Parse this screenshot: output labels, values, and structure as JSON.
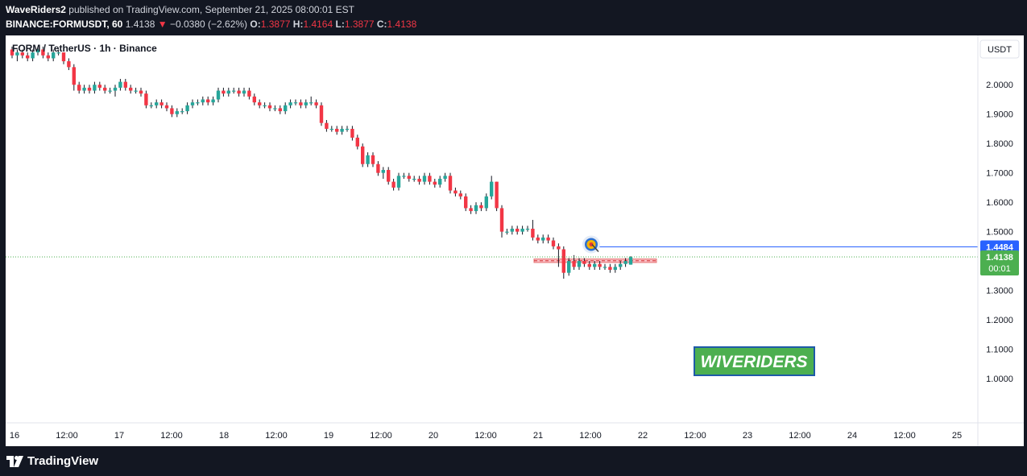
{
  "header": {
    "author": "WaveRiders2",
    "published": "published on TradingView.com, September 21, 2025 08:00:01 EST",
    "symbol": "BINANCE:FORMUSDT, 60",
    "last": "1.4138",
    "arrow": "▼",
    "change": "−0.0380 (−2.62%)",
    "o_label": "O:",
    "o": "1.3877",
    "h_label": "H:",
    "h": "1.4164",
    "l_label": "L:",
    "l": "1.3877",
    "c_label": "C:",
    "c": "1.4138"
  },
  "chart": {
    "legend": "FORM / TetherUS · 1h · Binance",
    "currency": "USDT",
    "watermark": "WIVERIDERS",
    "level_label": "1.4484",
    "price_label": "1.4138",
    "countdown": "00:01",
    "target_icon": "target-icon"
  },
  "footer": {
    "brand": "TradingView",
    "logo_icon": "tradingview-logo-icon"
  },
  "colors": {
    "up": "#26a69a",
    "down": "#f23645",
    "level": "#2962ff",
    "price": "#4caf50",
    "zone": "#f7a4ad",
    "watermark_bg": "#4caf50"
  },
  "chart_data": {
    "type": "candlestick",
    "title": "FORM / TetherUS · 1h · Binance",
    "ylim": [
      0.915,
      2.135
    ],
    "y_ticks": [
      "2.0000",
      "1.9000",
      "1.8000",
      "1.7000",
      "1.6000",
      "1.5000",
      "1.3000",
      "1.2000",
      "1.1000",
      "1.0000"
    ],
    "x_ticks": [
      "16",
      "12:00",
      "17",
      "12:00",
      "18",
      "12:00",
      "19",
      "12:00",
      "20",
      "12:00",
      "21",
      "12:00",
      "22",
      "12:00",
      "23",
      "12:00",
      "24",
      "12:00",
      "25"
    ],
    "x_tick_days": [
      16,
      16.5,
      17,
      17.5,
      18,
      18.5,
      19,
      19.5,
      20,
      20.5,
      21,
      21.5,
      22,
      22.5,
      23,
      23.5,
      24,
      24.5,
      25
    ],
    "horizontal_level": 1.4484,
    "last_price": 1.4138,
    "support_zone": [
      1.395,
      1.407
    ],
    "candles": [
      [
        2.12,
        2.13,
        2.09,
        2.1
      ],
      [
        2.1,
        2.12,
        2.08,
        2.11
      ],
      [
        2.11,
        2.12,
        2.09,
        2.1
      ],
      [
        2.1,
        2.11,
        2.08,
        2.09
      ],
      [
        2.09,
        2.12,
        2.08,
        2.11
      ],
      [
        2.11,
        2.13,
        2.1,
        2.12
      ],
      [
        2.12,
        2.13,
        2.09,
        2.1
      ],
      [
        2.1,
        2.11,
        2.08,
        2.09
      ],
      [
        2.09,
        2.12,
        2.08,
        2.11
      ],
      [
        2.11,
        2.12,
        2.1,
        2.11
      ],
      [
        2.11,
        2.11,
        2.07,
        2.08
      ],
      [
        2.08,
        2.09,
        2.05,
        2.06
      ],
      [
        2.06,
        2.07,
        1.98,
        2.0
      ],
      [
        2.0,
        2.01,
        1.97,
        1.98
      ],
      [
        1.98,
        2.0,
        1.97,
        1.99
      ],
      [
        1.99,
        2.0,
        1.97,
        1.98
      ],
      [
        1.98,
        2.01,
        1.97,
        2.0
      ],
      [
        2.0,
        2.01,
        1.98,
        1.99
      ],
      [
        1.99,
        2.0,
        1.97,
        1.98
      ],
      [
        1.98,
        1.99,
        1.97,
        1.98
      ],
      [
        1.98,
        2.0,
        1.96,
        1.99
      ],
      [
        1.99,
        2.02,
        1.98,
        2.01
      ],
      [
        2.01,
        2.02,
        1.98,
        1.99
      ],
      [
        1.99,
        2.0,
        1.97,
        1.98
      ],
      [
        1.98,
        1.99,
        1.97,
        1.98
      ],
      [
        1.98,
        1.99,
        1.96,
        1.97
      ],
      [
        1.97,
        1.98,
        1.92,
        1.93
      ],
      [
        1.93,
        1.94,
        1.92,
        1.93
      ],
      [
        1.93,
        1.95,
        1.92,
        1.94
      ],
      [
        1.94,
        1.95,
        1.92,
        1.93
      ],
      [
        1.93,
        1.94,
        1.91,
        1.92
      ],
      [
        1.92,
        1.93,
        1.89,
        1.9
      ],
      [
        1.9,
        1.92,
        1.89,
        1.91
      ],
      [
        1.91,
        1.92,
        1.9,
        1.91
      ],
      [
        1.91,
        1.94,
        1.9,
        1.93
      ],
      [
        1.93,
        1.95,
        1.92,
        1.94
      ],
      [
        1.94,
        1.95,
        1.93,
        1.94
      ],
      [
        1.94,
        1.96,
        1.93,
        1.95
      ],
      [
        1.95,
        1.96,
        1.93,
        1.94
      ],
      [
        1.94,
        1.96,
        1.93,
        1.95
      ],
      [
        1.95,
        1.99,
        1.94,
        1.98
      ],
      [
        1.98,
        1.99,
        1.96,
        1.97
      ],
      [
        1.97,
        1.99,
        1.96,
        1.98
      ],
      [
        1.98,
        1.99,
        1.97,
        1.98
      ],
      [
        1.98,
        1.99,
        1.96,
        1.97
      ],
      [
        1.97,
        1.99,
        1.96,
        1.98
      ],
      [
        1.98,
        1.99,
        1.95,
        1.96
      ],
      [
        1.96,
        1.97,
        1.93,
        1.94
      ],
      [
        1.94,
        1.95,
        1.92,
        1.93
      ],
      [
        1.93,
        1.94,
        1.92,
        1.93
      ],
      [
        1.93,
        1.94,
        1.91,
        1.92
      ],
      [
        1.92,
        1.93,
        1.91,
        1.92
      ],
      [
        1.92,
        1.93,
        1.9,
        1.91
      ],
      [
        1.91,
        1.94,
        1.9,
        1.93
      ],
      [
        1.93,
        1.95,
        1.92,
        1.94
      ],
      [
        1.94,
        1.95,
        1.93,
        1.94
      ],
      [
        1.94,
        1.95,
        1.92,
        1.93
      ],
      [
        1.93,
        1.95,
        1.92,
        1.94
      ],
      [
        1.94,
        1.96,
        1.93,
        1.94
      ],
      [
        1.94,
        1.95,
        1.92,
        1.93
      ],
      [
        1.93,
        1.94,
        1.86,
        1.87
      ],
      [
        1.87,
        1.88,
        1.84,
        1.85
      ],
      [
        1.85,
        1.86,
        1.84,
        1.85
      ],
      [
        1.85,
        1.86,
        1.83,
        1.84
      ],
      [
        1.84,
        1.86,
        1.83,
        1.85
      ],
      [
        1.85,
        1.86,
        1.84,
        1.85
      ],
      [
        1.85,
        1.86,
        1.81,
        1.82
      ],
      [
        1.82,
        1.83,
        1.78,
        1.79
      ],
      [
        1.79,
        1.8,
        1.72,
        1.73
      ],
      [
        1.73,
        1.77,
        1.72,
        1.76
      ],
      [
        1.76,
        1.77,
        1.72,
        1.73
      ],
      [
        1.73,
        1.74,
        1.69,
        1.7
      ],
      [
        1.7,
        1.72,
        1.68,
        1.71
      ],
      [
        1.71,
        1.72,
        1.66,
        1.67
      ],
      [
        1.67,
        1.68,
        1.64,
        1.65
      ],
      [
        1.65,
        1.7,
        1.64,
        1.69
      ],
      [
        1.69,
        1.7,
        1.68,
        1.69
      ],
      [
        1.69,
        1.7,
        1.67,
        1.68
      ],
      [
        1.68,
        1.69,
        1.67,
        1.68
      ],
      [
        1.68,
        1.69,
        1.66,
        1.67
      ],
      [
        1.67,
        1.7,
        1.66,
        1.69
      ],
      [
        1.69,
        1.7,
        1.66,
        1.67
      ],
      [
        1.67,
        1.68,
        1.65,
        1.66
      ],
      [
        1.66,
        1.69,
        1.65,
        1.68
      ],
      [
        1.68,
        1.7,
        1.67,
        1.69
      ],
      [
        1.69,
        1.7,
        1.63,
        1.64
      ],
      [
        1.64,
        1.65,
        1.62,
        1.63
      ],
      [
        1.63,
        1.64,
        1.61,
        1.62
      ],
      [
        1.62,
        1.63,
        1.57,
        1.58
      ],
      [
        1.58,
        1.59,
        1.56,
        1.57
      ],
      [
        1.57,
        1.6,
        1.56,
        1.59
      ],
      [
        1.59,
        1.6,
        1.57,
        1.58
      ],
      [
        1.58,
        1.63,
        1.57,
        1.62
      ],
      [
        1.62,
        1.69,
        1.61,
        1.67
      ],
      [
        1.67,
        1.67,
        1.57,
        1.58
      ],
      [
        1.58,
        1.59,
        1.48,
        1.5
      ],
      [
        1.5,
        1.51,
        1.49,
        1.5
      ],
      [
        1.5,
        1.52,
        1.49,
        1.51
      ],
      [
        1.51,
        1.52,
        1.49,
        1.5
      ],
      [
        1.5,
        1.52,
        1.49,
        1.51
      ],
      [
        1.51,
        1.52,
        1.5,
        1.51
      ],
      [
        1.51,
        1.54,
        1.47,
        1.48
      ],
      [
        1.48,
        1.49,
        1.46,
        1.47
      ],
      [
        1.47,
        1.49,
        1.46,
        1.48
      ],
      [
        1.48,
        1.49,
        1.46,
        1.47
      ],
      [
        1.47,
        1.48,
        1.44,
        1.45
      ],
      [
        1.45,
        1.46,
        1.38,
        1.44
      ],
      [
        1.44,
        1.45,
        1.34,
        1.36
      ],
      [
        1.36,
        1.41,
        1.35,
        1.4
      ],
      [
        1.4,
        1.42,
        1.37,
        1.38
      ],
      [
        1.38,
        1.41,
        1.37,
        1.4
      ],
      [
        1.4,
        1.41,
        1.38,
        1.39
      ],
      [
        1.39,
        1.4,
        1.37,
        1.38
      ],
      [
        1.38,
        1.4,
        1.37,
        1.39
      ],
      [
        1.39,
        1.4,
        1.37,
        1.38
      ],
      [
        1.38,
        1.39,
        1.37,
        1.38
      ],
      [
        1.38,
        1.39,
        1.36,
        1.37
      ],
      [
        1.37,
        1.39,
        1.36,
        1.38
      ],
      [
        1.38,
        1.4,
        1.37,
        1.39
      ],
      [
        1.39,
        1.41,
        1.38,
        1.4
      ],
      [
        1.3877,
        1.4164,
        1.3877,
        1.4138
      ]
    ]
  }
}
